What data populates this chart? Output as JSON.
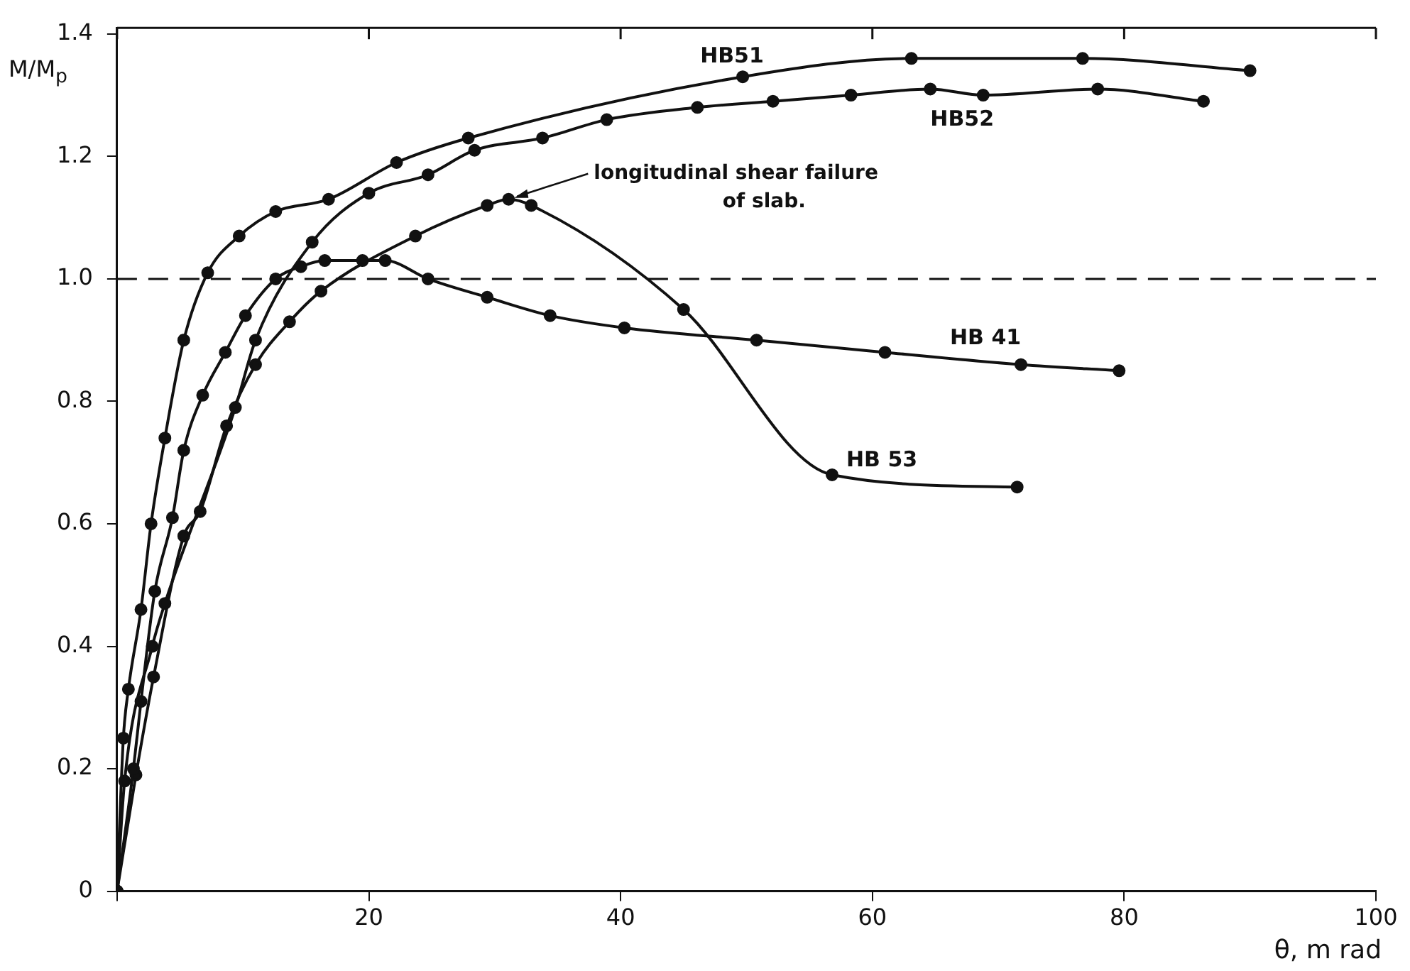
{
  "chart_data": {
    "type": "line",
    "xlabel": "θ, m rad",
    "ylabel": "M/M$_{p}$",
    "xlim": [
      0,
      100
    ],
    "xticks": [
      {
        "value": 0,
        "label": null
      },
      20,
      40,
      60,
      80,
      100
    ],
    "ylim": [
      0,
      1.41
    ],
    "yticks": [
      0,
      0.2,
      0.4,
      0.6,
      0.8,
      {
        "value": 1,
        "label": "1.0"
      },
      1.2,
      1.4
    ],
    "grid": false,
    "legend": false,
    "marker": "circle",
    "line_style": "solid",
    "ref_lines": [
      {
        "axis": "y",
        "value": 1.0,
        "line_style": "dashed",
        "color": "#111111"
      }
    ],
    "annotations": [
      {
        "text": "longitudinal shear failure\nof slab.",
        "x": 31.1,
        "y": 1.13
      }
    ],
    "series": [
      {
        "name": "HB51",
        "color": "#111111",
        "x": [
          0,
          0.5,
          0.9,
          1.9,
          2.7,
          3.8,
          5.3,
          7.2,
          9.7,
          12.6,
          16.8,
          22.2,
          27.9,
          49.7,
          63.1,
          76.7,
          90.0
        ],
        "values": [
          0,
          0.25,
          0.33,
          0.46,
          0.6,
          0.74,
          0.9,
          1.01,
          1.07,
          1.11,
          1.13,
          1.19,
          1.23,
          1.33,
          1.36,
          1.36,
          1.34
        ]
      },
      {
        "name": "HB52",
        "color": "#111111",
        "x": [
          0,
          0.6,
          2.8,
          3.8,
          9.4,
          11.0,
          15.5,
          20.0,
          24.7,
          28.4,
          33.8,
          38.9,
          46.1,
          52.1,
          58.3,
          64.6,
          68.8,
          77.9,
          86.3
        ],
        "values": [
          0,
          0.18,
          0.4,
          0.47,
          0.79,
          0.9,
          1.06,
          1.14,
          1.17,
          1.21,
          1.23,
          1.26,
          1.28,
          1.29,
          1.3,
          1.31,
          1.3,
          1.31,
          1.29
        ]
      },
      {
        "name": "HB 41",
        "color": "#111111",
        "x": [
          0,
          1.3,
          1.9,
          3.0,
          4.4,
          5.3,
          6.8,
          8.6,
          10.2,
          12.6,
          14.6,
          16.5,
          19.5,
          21.3,
          24.7,
          29.4,
          34.4,
          40.3,
          50.8,
          61.0,
          71.8,
          79.6
        ],
        "values": [
          0,
          0.2,
          0.31,
          0.49,
          0.61,
          0.72,
          0.81,
          0.88,
          0.94,
          1.0,
          1.02,
          1.03,
          1.03,
          1.03,
          1.0,
          0.97,
          0.94,
          0.92,
          0.9,
          0.88,
          0.86,
          0.85
        ]
      },
      {
        "name": "HB 53",
        "color": "#111111",
        "x": [
          0,
          1.5,
          2.9,
          5.3,
          6.6,
          8.7,
          11.0,
          13.7,
          16.2,
          23.7,
          29.4,
          31.1,
          32.9,
          45.0,
          56.8,
          71.5
        ],
        "values": [
          0,
          0.19,
          0.35,
          0.58,
          0.62,
          0.76,
          0.86,
          0.93,
          0.98,
          1.07,
          1.12,
          1.13,
          1.12,
          0.95,
          0.68,
          0.66
        ]
      }
    ]
  }
}
